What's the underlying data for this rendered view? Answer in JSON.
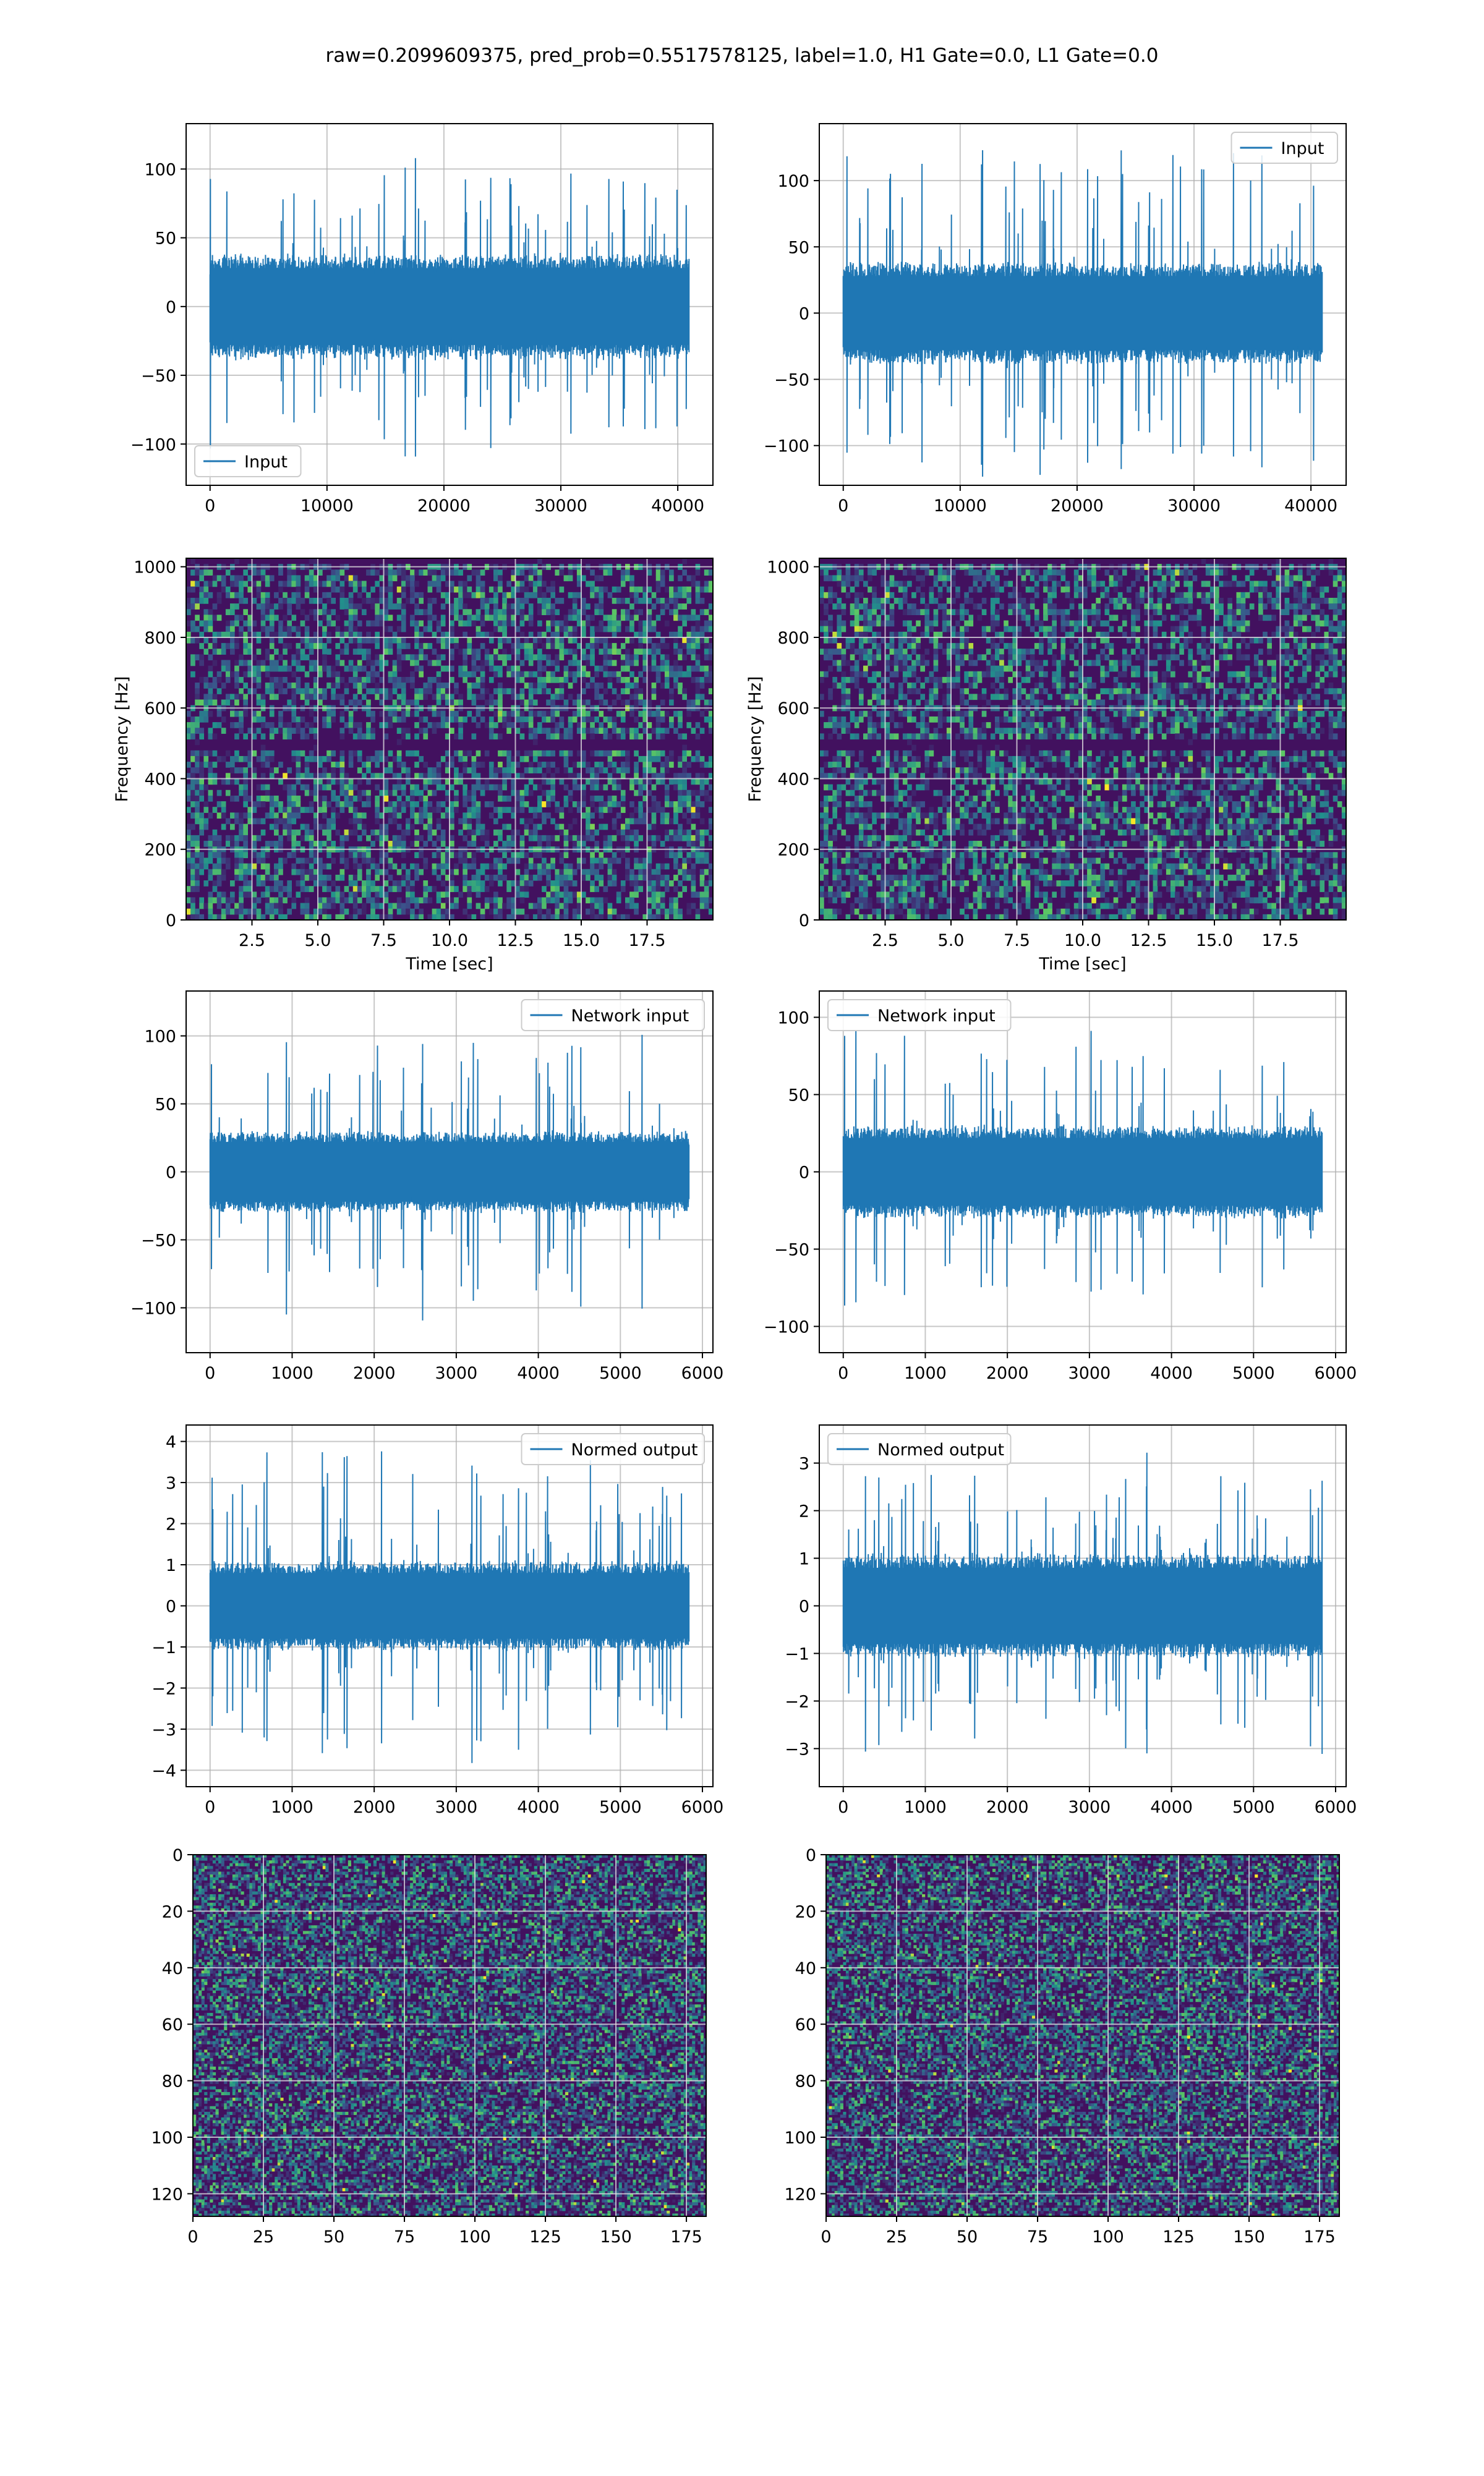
{
  "figure": {
    "suptitle": "raw=0.2099609375, pred_prob=0.5517578125, label=1.0, H1 Gate=0.0, L1 Gate=0.0",
    "line_color": "#1f77b4"
  },
  "chart_data": [
    {
      "id": "h1-input",
      "type": "line",
      "series": [
        {
          "name": "Input"
        }
      ],
      "legend": "lower left",
      "xlim": [
        -2048,
        43008
      ],
      "ylim": [
        -130,
        133
      ],
      "xticks": [
        0,
        10000,
        20000,
        30000,
        40000
      ],
      "yticks": [
        -100,
        -50,
        0,
        50,
        100
      ],
      "xlabel": "",
      "ylabel": "",
      "signal": {
        "n": 40960,
        "core": 28,
        "spike": 118
      }
    },
    {
      "id": "l1-input",
      "type": "line",
      "series": [
        {
          "name": "Input"
        }
      ],
      "legend": "upper right",
      "xlim": [
        -2048,
        43008
      ],
      "ylim": [
        -130,
        143
      ],
      "xticks": [
        0,
        10000,
        20000,
        30000,
        40000
      ],
      "yticks": [
        -100,
        -50,
        0,
        50,
        100
      ],
      "xlabel": "",
      "ylabel": "",
      "signal": {
        "n": 40960,
        "core": 28,
        "spike": 133
      }
    },
    {
      "id": "h1-spectrogram",
      "type": "heatmap",
      "xlim": [
        0,
        20
      ],
      "ylim": [
        0,
        1024
      ],
      "xticks": [
        2.5,
        5.0,
        7.5,
        10.0,
        12.5,
        15.0,
        17.5
      ],
      "yticks": [
        0,
        200,
        400,
        600,
        800,
        1000
      ],
      "xlabel": "Time [sec]",
      "ylabel": "Frequency [Hz]",
      "colormap": "viridis",
      "grid": true,
      "notes": [
        "dark band near 500 Hz"
      ]
    },
    {
      "id": "l1-spectrogram",
      "type": "heatmap",
      "xlim": [
        0,
        20
      ],
      "ylim": [
        0,
        1024
      ],
      "xticks": [
        2.5,
        5.0,
        7.5,
        10.0,
        12.5,
        15.0,
        17.5
      ],
      "yticks": [
        0,
        200,
        400,
        600,
        800,
        1000
      ],
      "xlabel": "Time [sec]",
      "ylabel": "Frequency [Hz]",
      "colormap": "viridis",
      "grid": true,
      "notes": [
        "dark band near 500 Hz"
      ]
    },
    {
      "id": "h1-network-input",
      "type": "line",
      "series": [
        {
          "name": "Network input"
        }
      ],
      "legend": "upper right",
      "xlim": [
        -292,
        6128
      ],
      "ylim": [
        -133,
        133
      ],
      "xticks": [
        0,
        1000,
        2000,
        3000,
        4000,
        5000,
        6000
      ],
      "yticks": [
        -100,
        -50,
        0,
        50,
        100
      ],
      "xlabel": "",
      "ylabel": "",
      "signal": {
        "n": 5836,
        "core": 22,
        "spike": 115
      }
    },
    {
      "id": "l1-network-input",
      "type": "line",
      "series": [
        {
          "name": "Network input"
        }
      ],
      "legend": "upper left",
      "xlim": [
        -292,
        6128
      ],
      "ylim": [
        -117,
        117
      ],
      "xticks": [
        0,
        1000,
        2000,
        3000,
        4000,
        5000,
        6000
      ],
      "yticks": [
        -100,
        -50,
        0,
        50,
        100
      ],
      "xlabel": "",
      "ylabel": "",
      "signal": {
        "n": 5836,
        "core": 22,
        "spike": 105
      }
    },
    {
      "id": "h1-normed-output",
      "type": "line",
      "series": [
        {
          "name": "Normed output"
        }
      ],
      "legend": "upper right",
      "xlim": [
        -292,
        6128
      ],
      "ylim": [
        -4.4,
        4.4
      ],
      "xticks": [
        0,
        1000,
        2000,
        3000,
        4000,
        5000,
        6000
      ],
      "yticks": [
        -4,
        -3,
        -2,
        -1,
        0,
        1,
        2,
        3,
        4
      ],
      "xlabel": "",
      "ylabel": "",
      "signal": {
        "n": 5836,
        "core": 0.8,
        "spike": 4.0
      }
    },
    {
      "id": "l1-normed-output",
      "type": "line",
      "series": [
        {
          "name": "Normed output"
        }
      ],
      "legend": "upper left",
      "xlim": [
        -292,
        6128
      ],
      "ylim": [
        -3.8,
        3.8
      ],
      "xticks": [
        0,
        1000,
        2000,
        3000,
        4000,
        5000,
        6000
      ],
      "yticks": [
        -3,
        -2,
        -1,
        0,
        1,
        2,
        3
      ],
      "xlabel": "",
      "ylabel": "",
      "signal": {
        "n": 5836,
        "core": 0.8,
        "spike": 3.5
      }
    },
    {
      "id": "h1-matrix",
      "type": "heatmap",
      "xlim": [
        0,
        182
      ],
      "ylim": [
        0,
        128
      ],
      "y_inverted": true,
      "xticks": [
        0,
        25,
        50,
        75,
        100,
        125,
        150,
        175
      ],
      "yticks": [
        0,
        20,
        40,
        60,
        80,
        100,
        120
      ],
      "xlabel": "",
      "ylabel": "",
      "colormap": "viridis",
      "grid": true
    },
    {
      "id": "l1-matrix",
      "type": "heatmap",
      "xlim": [
        0,
        182
      ],
      "ylim": [
        0,
        128
      ],
      "y_inverted": true,
      "xticks": [
        0,
        25,
        50,
        75,
        100,
        125,
        150,
        175
      ],
      "yticks": [
        0,
        20,
        40,
        60,
        80,
        100,
        120
      ],
      "xlabel": "",
      "ylabel": "",
      "colormap": "viridis",
      "grid": true
    }
  ]
}
